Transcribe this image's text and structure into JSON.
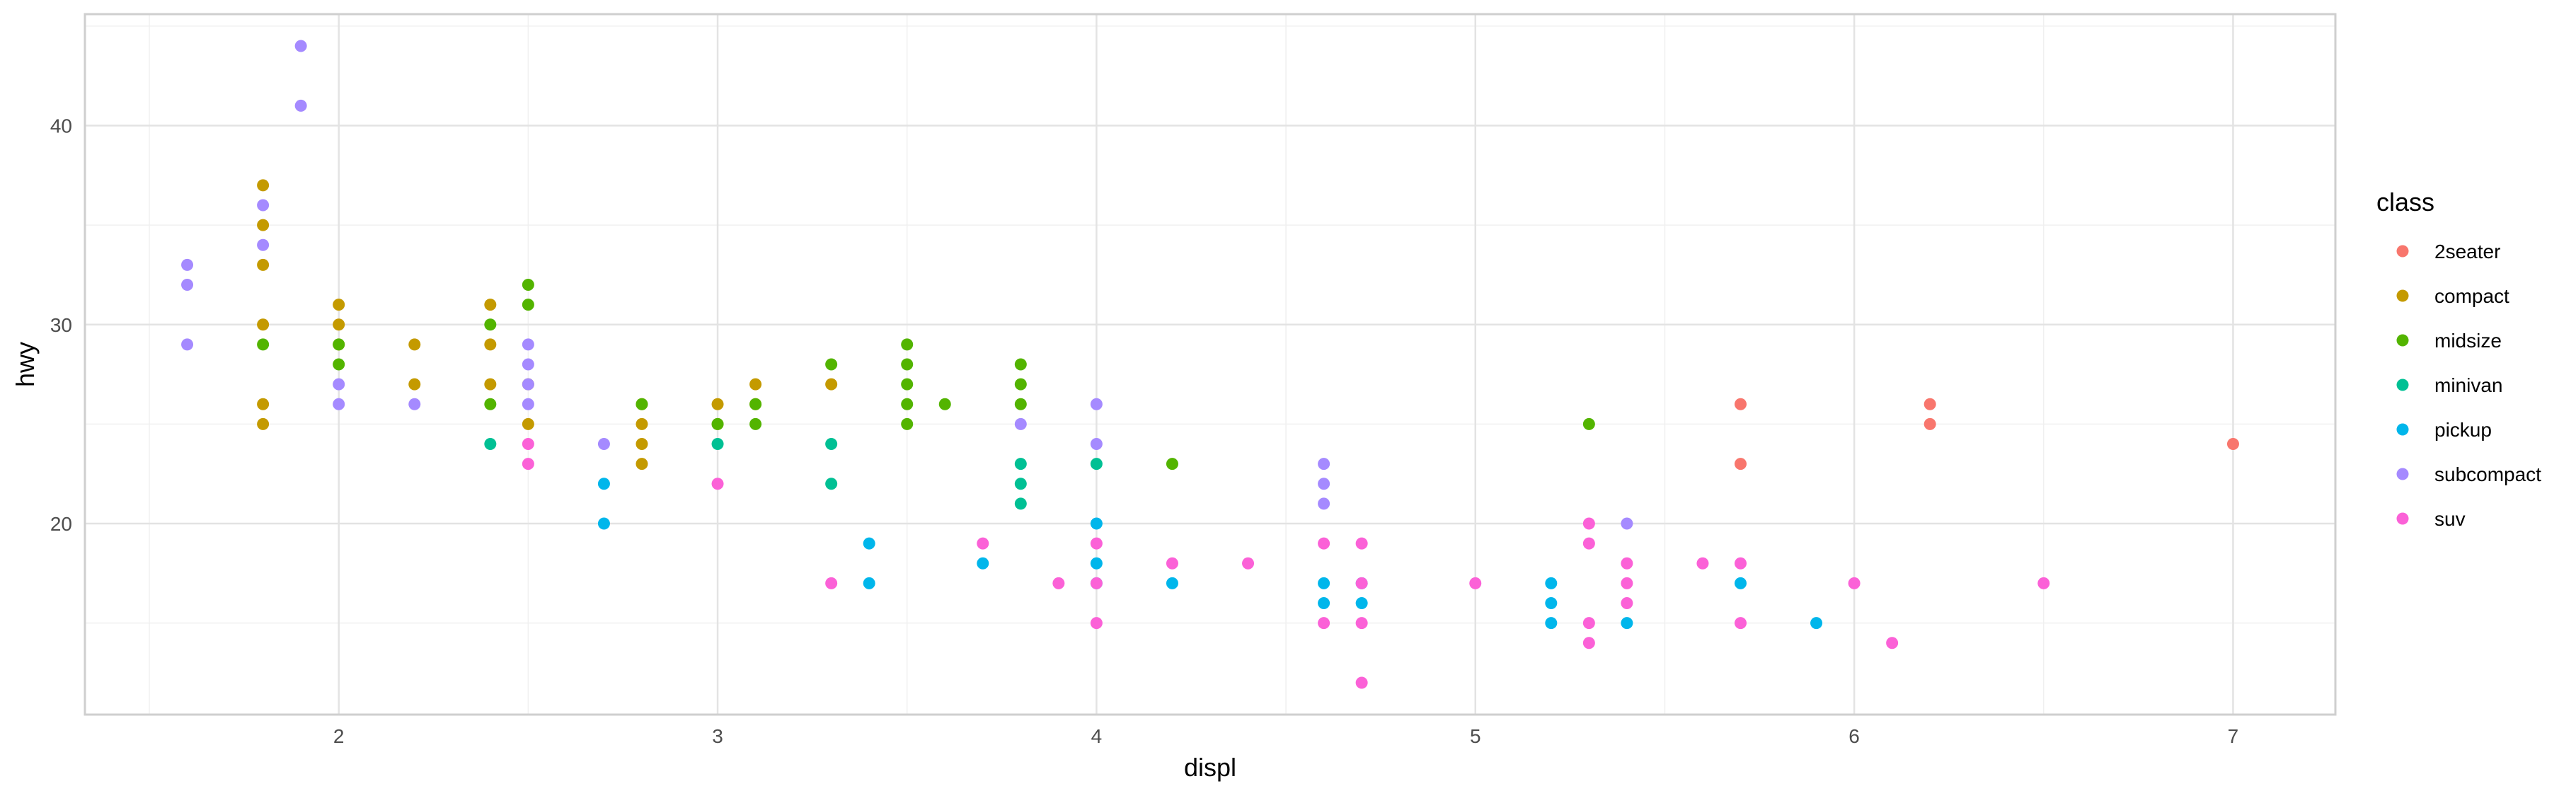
{
  "chart_data": {
    "type": "scatter",
    "xlabel": "displ",
    "ylabel": "hwy",
    "xlim": [
      1.33,
      7.27
    ],
    "ylim": [
      10.4,
      45.6
    ],
    "xticks": [
      2,
      3,
      4,
      5,
      6,
      7
    ],
    "yticks": [
      20,
      30,
      40
    ],
    "grid": true,
    "legend": {
      "title": "class",
      "placement": "right",
      "entries": [
        "2seater",
        "compact",
        "midsize",
        "minivan",
        "pickup",
        "subcompact",
        "suv"
      ]
    },
    "colors": {
      "2seater": "#F8766D",
      "compact": "#C49A00",
      "midsize": "#53B400",
      "minivan": "#00C094",
      "pickup": "#00B6EB",
      "subcompact": "#A58AFF",
      "suv": "#FB61D7"
    },
    "series": [
      {
        "name": "2seater",
        "points": [
          [
            5.7,
            26
          ],
          [
            5.7,
            23
          ],
          [
            6.2,
            26
          ],
          [
            6.2,
            25
          ],
          [
            7.0,
            24
          ]
        ]
      },
      {
        "name": "compact",
        "points": [
          [
            1.8,
            37
          ],
          [
            1.8,
            35
          ],
          [
            1.8,
            33
          ],
          [
            1.8,
            30
          ],
          [
            1.8,
            26
          ],
          [
            1.8,
            25
          ],
          [
            2.0,
            31
          ],
          [
            2.0,
            30
          ],
          [
            2.0,
            29
          ],
          [
            2.2,
            29
          ],
          [
            2.2,
            27
          ],
          [
            2.4,
            31
          ],
          [
            2.4,
            29
          ],
          [
            2.4,
            27
          ],
          [
            2.5,
            27
          ],
          [
            2.5,
            25
          ],
          [
            2.8,
            26
          ],
          [
            2.8,
            25
          ],
          [
            2.8,
            24
          ],
          [
            2.8,
            23
          ],
          [
            3.0,
            26
          ],
          [
            3.0,
            25
          ],
          [
            3.1,
            27
          ],
          [
            3.1,
            26
          ],
          [
            3.3,
            27
          ]
        ]
      },
      {
        "name": "midsize",
        "points": [
          [
            1.8,
            29
          ],
          [
            2.0,
            29
          ],
          [
            2.0,
            28
          ],
          [
            2.4,
            30
          ],
          [
            2.4,
            26
          ],
          [
            2.5,
            32
          ],
          [
            2.5,
            31
          ],
          [
            2.8,
            26
          ],
          [
            3.0,
            25
          ],
          [
            3.1,
            26
          ],
          [
            3.1,
            25
          ],
          [
            3.3,
            28
          ],
          [
            3.5,
            29
          ],
          [
            3.5,
            28
          ],
          [
            3.5,
            27
          ],
          [
            3.5,
            26
          ],
          [
            3.5,
            25
          ],
          [
            3.6,
            26
          ],
          [
            3.8,
            28
          ],
          [
            3.8,
            27
          ],
          [
            3.8,
            26
          ],
          [
            4.2,
            23
          ],
          [
            5.3,
            25
          ]
        ]
      },
      {
        "name": "minivan",
        "points": [
          [
            2.4,
            24
          ],
          [
            3.0,
            24
          ],
          [
            3.3,
            24
          ],
          [
            3.3,
            22
          ],
          [
            3.8,
            23
          ],
          [
            3.8,
            22
          ],
          [
            3.8,
            21
          ],
          [
            4.0,
            23
          ]
        ]
      },
      {
        "name": "pickup",
        "points": [
          [
            2.7,
            22
          ],
          [
            2.7,
            20
          ],
          [
            3.4,
            19
          ],
          [
            3.4,
            17
          ],
          [
            3.7,
            18
          ],
          [
            4.0,
            20
          ],
          [
            4.0,
            18
          ],
          [
            4.0,
            17
          ],
          [
            4.2,
            17
          ],
          [
            4.6,
            17
          ],
          [
            4.6,
            16
          ],
          [
            4.7,
            17
          ],
          [
            4.7,
            16
          ],
          [
            5.2,
            17
          ],
          [
            5.2,
            16
          ],
          [
            5.2,
            15
          ],
          [
            5.4,
            15
          ],
          [
            5.7,
            17
          ],
          [
            5.9,
            15
          ]
        ]
      },
      {
        "name": "subcompact",
        "points": [
          [
            1.6,
            33
          ],
          [
            1.6,
            32
          ],
          [
            1.6,
            29
          ],
          [
            1.8,
            36
          ],
          [
            1.8,
            34
          ],
          [
            1.9,
            44
          ],
          [
            1.9,
            41
          ],
          [
            2.0,
            27
          ],
          [
            2.0,
            26
          ],
          [
            2.2,
            26
          ],
          [
            2.5,
            29
          ],
          [
            2.5,
            28
          ],
          [
            2.5,
            27
          ],
          [
            2.5,
            26
          ],
          [
            2.7,
            24
          ],
          [
            3.8,
            25
          ],
          [
            4.0,
            26
          ],
          [
            4.0,
            24
          ],
          [
            4.6,
            23
          ],
          [
            4.6,
            22
          ],
          [
            4.6,
            21
          ],
          [
            5.4,
            20
          ]
        ]
      },
      {
        "name": "suv",
        "points": [
          [
            2.5,
            24
          ],
          [
            2.5,
            23
          ],
          [
            3.0,
            22
          ],
          [
            3.3,
            17
          ],
          [
            3.7,
            19
          ],
          [
            3.9,
            17
          ],
          [
            4.0,
            19
          ],
          [
            4.0,
            17
          ],
          [
            4.0,
            15
          ],
          [
            4.2,
            18
          ],
          [
            4.4,
            18
          ],
          [
            4.6,
            19
          ],
          [
            4.6,
            15
          ],
          [
            4.7,
            19
          ],
          [
            4.7,
            17
          ],
          [
            4.7,
            15
          ],
          [
            4.7,
            12
          ],
          [
            5.0,
            17
          ],
          [
            5.3,
            20
          ],
          [
            5.3,
            19
          ],
          [
            5.3,
            15
          ],
          [
            5.3,
            14
          ],
          [
            5.4,
            18
          ],
          [
            5.4,
            17
          ],
          [
            5.4,
            16
          ],
          [
            5.6,
            18
          ],
          [
            5.7,
            18
          ],
          [
            5.7,
            15
          ],
          [
            6.0,
            17
          ],
          [
            6.1,
            14
          ],
          [
            6.5,
            17
          ]
        ]
      }
    ]
  }
}
